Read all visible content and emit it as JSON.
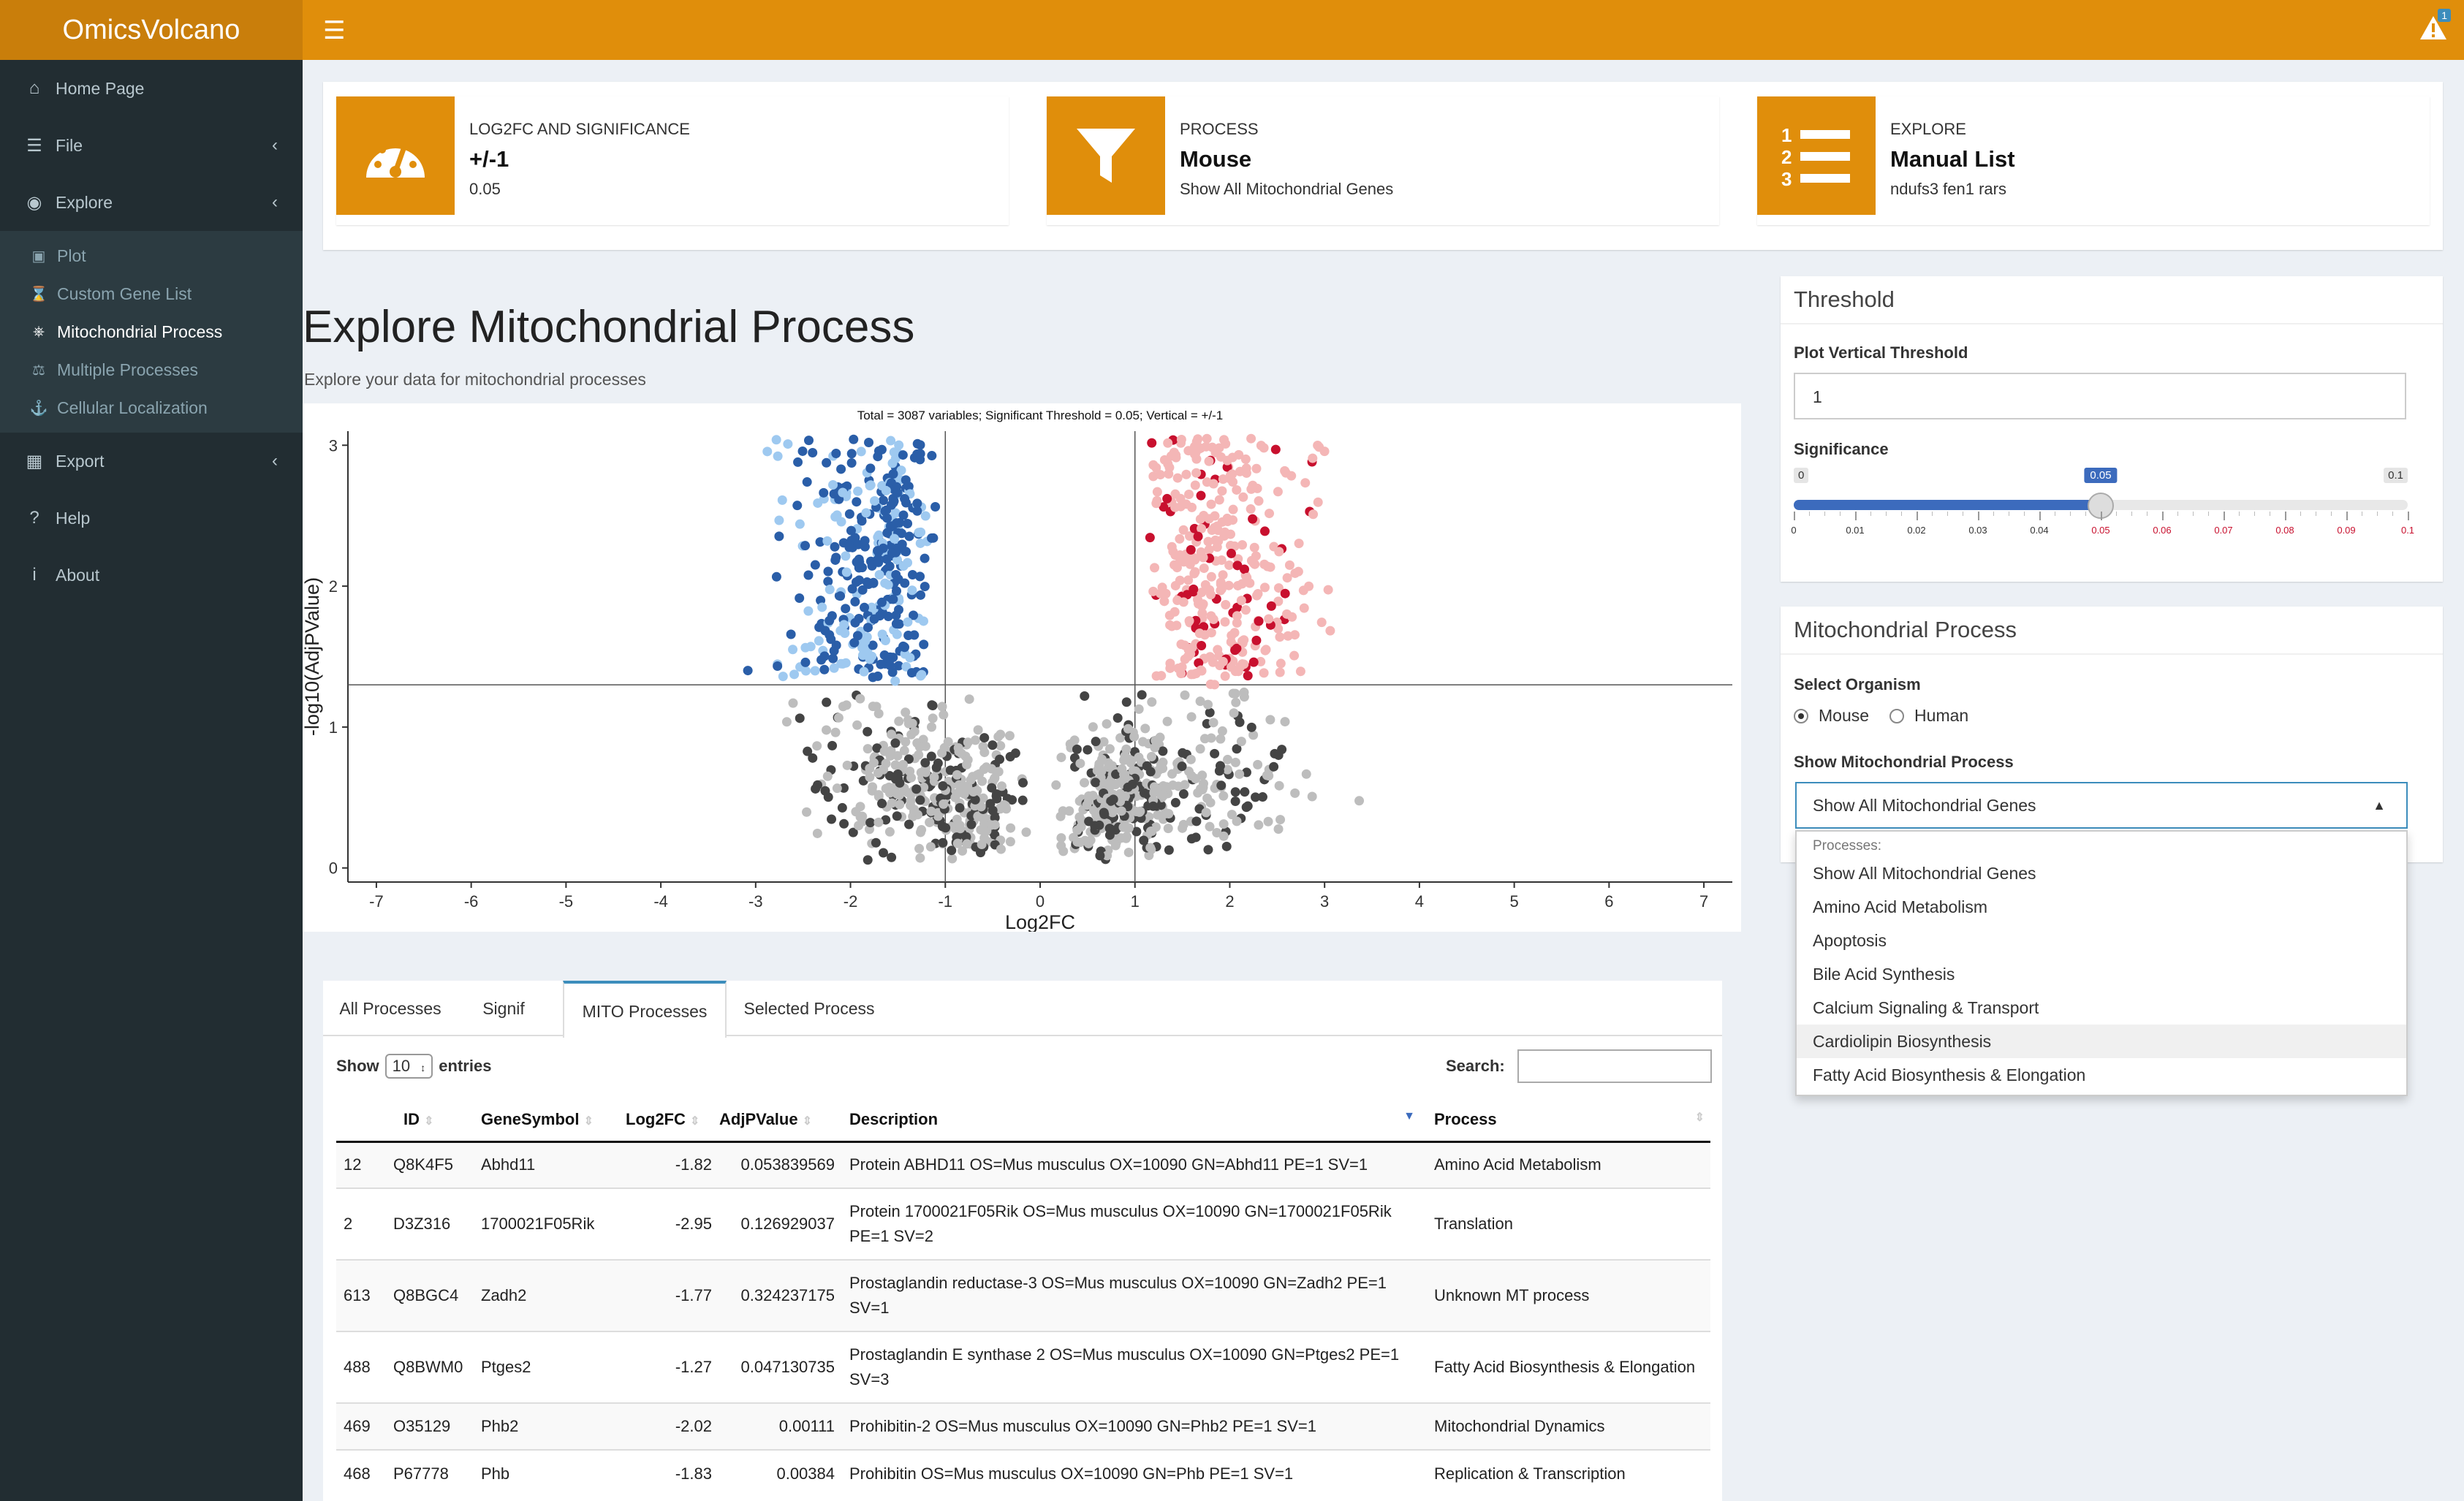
{
  "app": {
    "title": "OmicsVolcano",
    "alert_count": "1"
  },
  "sidebar": {
    "items": [
      {
        "label": "Home Page",
        "icon": "home-icon"
      },
      {
        "label": "File",
        "icon": "database-icon"
      },
      {
        "label": "Explore",
        "icon": "eye-icon"
      }
    ],
    "explore_sub": [
      {
        "label": "Plot",
        "icon": "image-icon"
      },
      {
        "label": "Custom Gene List",
        "icon": "hourglass-icon"
      },
      {
        "label": "Mitochondrial Process",
        "icon": "sitemap-icon"
      },
      {
        "label": "Multiple Processes",
        "icon": "balance-icon"
      },
      {
        "label": "Cellular Localization",
        "icon": "anchor-icon"
      }
    ],
    "bottom": [
      {
        "label": "Export",
        "icon": "save-icon"
      },
      {
        "label": "Help",
        "icon": "question-icon"
      },
      {
        "label": "About",
        "icon": "info-icon"
      }
    ]
  },
  "infoboxes": [
    {
      "label": "LOG2FC AND SIGNIFICANCE",
      "value": "+/-1",
      "sub": "0.05",
      "icon": "dashboard-icon"
    },
    {
      "label": "PROCESS",
      "value": "Mouse",
      "sub": "Show All Mitochondrial Genes",
      "icon": "filter-icon"
    },
    {
      "label": "EXPLORE",
      "value": "Manual List",
      "sub": "ndufs3 fen1 rars",
      "icon": "list-icon"
    }
  ],
  "page": {
    "title": "Explore Mitochondrial Process",
    "subtitle": "Explore your data for mitochondrial processes"
  },
  "chart_data": {
    "type": "scatter",
    "title": "Total = 3087 variables; Significant Threshold = 0.05; Vertical = +/-1",
    "xlabel": "Log2FC",
    "ylabel": "-log10(AdjPValue)",
    "xlim": [
      -7.3,
      7.3
    ],
    "ylim": [
      -0.1,
      3.1
    ],
    "x_ticks": [
      "-7",
      "-6",
      "-5",
      "-4",
      "-3",
      "-2",
      "-1",
      "0",
      "1",
      "2",
      "3",
      "4",
      "5",
      "6",
      "7"
    ],
    "y_ticks": [
      "0",
      "1",
      "2",
      "3"
    ],
    "hlines": [
      1.3
    ],
    "vlines": [
      -1,
      1
    ],
    "series_colors": {
      "up_mito": "#c8102e",
      "up": "#f4b6b6",
      "down_mito": "#2a5ea8",
      "down": "#9ec9f0",
      "ns_mito": "#444444",
      "ns": "#bdbdbd"
    },
    "random_seed": 7
  },
  "threshold": {
    "title": "Threshold",
    "vertical_label": "Plot Vertical Threshold",
    "vertical_value": "1",
    "sig_label": "Significance",
    "sig_min": "0",
    "sig_max": "0.1",
    "sig_value": "0.05",
    "sig_fraction": 0.5,
    "ticks": [
      "0",
      "0.01",
      "0.02",
      "0.03",
      "0.04",
      "0.05",
      "0.06",
      "0.07",
      "0.08",
      "0.09",
      "0.1"
    ]
  },
  "mito": {
    "title": "Mitochondrial Process",
    "organism_label": "Select Organism",
    "organisms": [
      "Mouse",
      "Human"
    ],
    "selected_organism": "Mouse",
    "process_label": "Show Mitochondrial Process",
    "selected_process": "Show All Mitochondrial Genes",
    "dropdown_header": "Processes:",
    "options": [
      "Show All Mitochondrial Genes",
      "Amino Acid Metabolism",
      "Apoptosis",
      "Bile Acid Synthesis",
      "Calcium Signaling & Transport",
      "Cardiolipin Biosynthesis",
      "Fatty Acid Biosynthesis & Elongation"
    ]
  },
  "table": {
    "tabs": [
      "All Processes",
      "Signif",
      "MITO Processes",
      "Selected Process"
    ],
    "show_label": "Show",
    "entries_value": "10",
    "entries_label": "entries",
    "search_label": "Search:",
    "columns": [
      "",
      "ID",
      "GeneSymbol",
      "Log2FC",
      "AdjPValue",
      "Description",
      "Process"
    ],
    "rows": [
      [
        "12",
        "Q8K4F5",
        "Abhd11",
        "-1.82",
        "0.053839569",
        "Protein ABHD11 OS=Mus musculus OX=10090 GN=Abhd11 PE=1 SV=1",
        "Amino Acid Metabolism"
      ],
      [
        "2",
        "D3Z316",
        "1700021F05Rik",
        "-2.95",
        "0.126929037",
        "Protein 1700021F05Rik OS=Mus musculus OX=10090 GN=1700021F05Rik PE=1 SV=2",
        "Translation"
      ],
      [
        "613",
        "Q8BGC4",
        "Zadh2",
        "-1.77",
        "0.324237175",
        "Prostaglandin reductase-3 OS=Mus musculus OX=10090 GN=Zadh2 PE=1 SV=1",
        "Unknown MT process"
      ],
      [
        "488",
        "Q8BWM0",
        "Ptges2",
        "-1.27",
        "0.047130735",
        "Prostaglandin E synthase 2 OS=Mus musculus OX=10090 GN=Ptges2 PE=1 SV=3",
        "Fatty Acid Biosynthesis & Elongation"
      ],
      [
        "469",
        "O35129",
        "Phb2",
        "-2.02",
        "0.00111",
        "Prohibitin-2 OS=Mus musculus OX=10090 GN=Phb2 PE=1 SV=1",
        "Mitochondrial Dynamics"
      ],
      [
        "468",
        "P67778",
        "Phb",
        "-1.83",
        "0.00384",
        "Prohibitin OS=Mus musculus OX=10090 GN=Phb PE=1 SV=1",
        "Replication & Transcription"
      ]
    ]
  }
}
